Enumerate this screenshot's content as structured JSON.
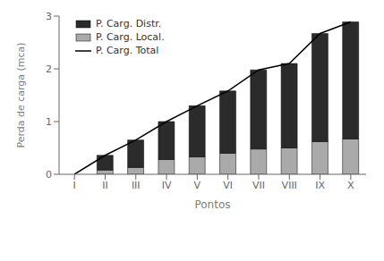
{
  "chart_data": {
    "type": "bar",
    "stacked": true,
    "xlabel": "Pontos",
    "ylabel": "Perda de carga (mca)",
    "categories": [
      "I",
      "II",
      "III",
      "IV",
      "V",
      "VI",
      "VII",
      "VIII",
      "IX",
      "X"
    ],
    "series": [
      {
        "name": "P. Carg. Distr.",
        "color": "#2b2b2b",
        "type": "bar",
        "values": [
          0.0,
          0.28,
          0.52,
          0.72,
          0.97,
          1.18,
          1.5,
          1.6,
          2.05,
          2.22
        ]
      },
      {
        "name": "P. Carg. Local.",
        "color": "#aaaaaa",
        "type": "bar",
        "values": [
          0.0,
          0.08,
          0.13,
          0.28,
          0.33,
          0.4,
          0.48,
          0.5,
          0.62,
          0.67
        ]
      },
      {
        "name": "P. Carg. Total",
        "color": "#000000",
        "type": "line",
        "values": [
          0.0,
          0.36,
          0.65,
          1.0,
          1.3,
          1.58,
          1.98,
          2.1,
          2.67,
          2.89
        ]
      }
    ],
    "ylim": [
      0,
      3.0
    ],
    "yticks": [
      0,
      1,
      2,
      3
    ],
    "grid": false,
    "legend": "upper left"
  }
}
